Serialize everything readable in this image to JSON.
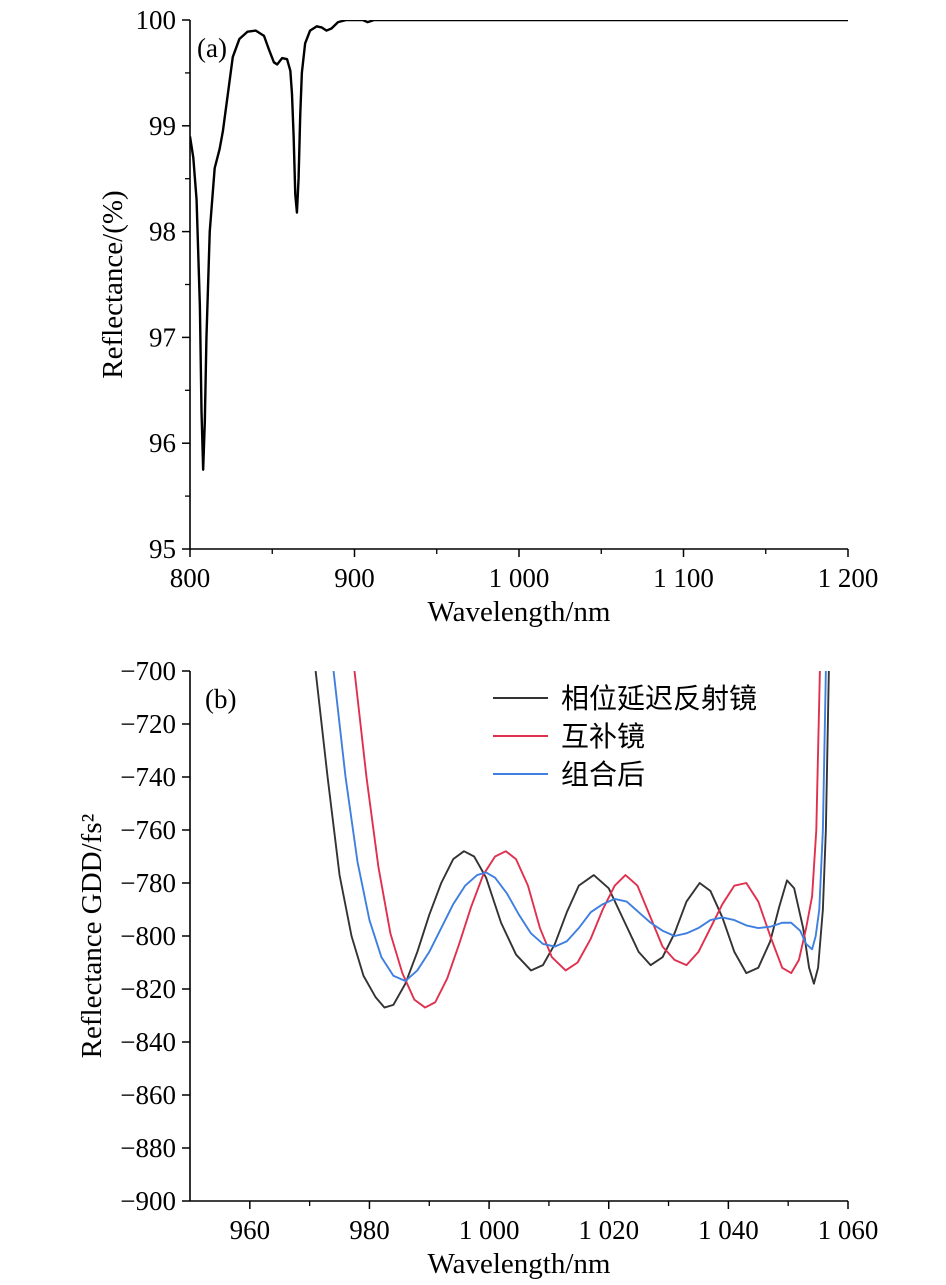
{
  "chart_data": [
    {
      "type": "line",
      "panel_label": "(a)",
      "xlabel": "Wavelength/nm",
      "ylabel": "Reflectance/(%)",
      "xlim": [
        800,
        1200
      ],
      "ylim": [
        95,
        100
      ],
      "xticks": [
        800,
        900,
        1000,
        1100,
        1200
      ],
      "xtick_labels": [
        "800",
        "900",
        "1 000",
        "1 100",
        "1 200"
      ],
      "yticks": [
        95,
        96,
        97,
        98,
        99,
        100
      ],
      "ytick_labels": [
        "95",
        "96",
        "97",
        "98",
        "99",
        "100"
      ],
      "grid": false,
      "series": [
        {
          "color": "#000000",
          "points": [
            [
              800,
              98.9
            ],
            [
              802,
              98.7
            ],
            [
              804,
              98.3
            ],
            [
              806,
              97.3
            ],
            [
              807,
              96.3
            ],
            [
              808,
              95.75
            ],
            [
              809,
              96.2
            ],
            [
              810,
              97.0
            ],
            [
              812,
              98.0
            ],
            [
              815,
              98.6
            ],
            [
              818,
              98.78
            ],
            [
              820,
              98.95
            ],
            [
              823,
              99.3
            ],
            [
              826,
              99.65
            ],
            [
              830,
              99.82
            ],
            [
              835,
              99.89
            ],
            [
              840,
              99.9
            ],
            [
              845,
              99.85
            ],
            [
              848,
              99.72
            ],
            [
              851,
              99.6
            ],
            [
              853,
              99.58
            ],
            [
              856,
              99.64
            ],
            [
              859,
              99.63
            ],
            [
              861,
              99.52
            ],
            [
              862,
              99.3
            ],
            [
              863,
              98.9
            ],
            [
              864,
              98.35
            ],
            [
              865,
              98.18
            ],
            [
              866,
              98.5
            ],
            [
              867,
              99.1
            ],
            [
              868,
              99.5
            ],
            [
              870,
              99.78
            ],
            [
              873,
              99.9
            ],
            [
              877,
              99.94
            ],
            [
              880,
              99.93
            ],
            [
              883,
              99.9
            ],
            [
              886,
              99.92
            ],
            [
              890,
              99.98
            ],
            [
              895,
              100.0
            ],
            [
              905,
              100.0
            ],
            [
              908,
              99.98
            ],
            [
              912,
              100.0
            ],
            [
              950,
              100.0
            ],
            [
              1000,
              100.0
            ],
            [
              1100,
              100.0
            ],
            [
              1200,
              100.0
            ]
          ]
        }
      ]
    },
    {
      "type": "line",
      "panel_label": "(b)",
      "xlabel": "Wavelength/nm",
      "ylabel": "Reflectance GDD/fs²",
      "xlim": [
        950,
        1060
      ],
      "ylim": [
        -900,
        -700
      ],
      "xticks": [
        960,
        980,
        1000,
        1020,
        1040,
        1060
      ],
      "xtick_labels": [
        "960",
        "980",
        "1 000",
        "1 020",
        "1 040",
        "1 060"
      ],
      "yticks": [
        -900,
        -880,
        -860,
        -840,
        -820,
        -800,
        -780,
        -760,
        -740,
        -720,
        -700
      ],
      "ytick_labels": [
        "−900",
        "−880",
        "−860",
        "−840",
        "−820",
        "−800",
        "−780",
        "−760",
        "−740",
        "−720",
        "−700"
      ],
      "grid": false,
      "legend_position": "top-right",
      "series": [
        {
          "name": "相位延迟反射镜",
          "color": "#333333",
          "points": [
            [
              971,
              -700
            ],
            [
              973,
              -740
            ],
            [
              975,
              -777
            ],
            [
              977,
              -800
            ],
            [
              979,
              -815
            ],
            [
              981,
              -823
            ],
            [
              982.5,
              -827
            ],
            [
              984,
              -826
            ],
            [
              986,
              -818
            ],
            [
              988,
              -806
            ],
            [
              990,
              -792
            ],
            [
              992,
              -780
            ],
            [
              994,
              -771
            ],
            [
              995.8,
              -768
            ],
            [
              997.5,
              -770
            ],
            [
              999.5,
              -778
            ],
            [
              1002,
              -795
            ],
            [
              1004.5,
              -807
            ],
            [
              1007,
              -813
            ],
            [
              1009,
              -811
            ],
            [
              1011,
              -803
            ],
            [
              1013,
              -791
            ],
            [
              1015,
              -781
            ],
            [
              1017.5,
              -777
            ],
            [
              1020,
              -782
            ],
            [
              1022.5,
              -794
            ],
            [
              1025,
              -806
            ],
            [
              1027,
              -811
            ],
            [
              1029,
              -808
            ],
            [
              1031,
              -799
            ],
            [
              1033,
              -787
            ],
            [
              1035.2,
              -780
            ],
            [
              1037,
              -783
            ],
            [
              1039,
              -793
            ],
            [
              1041,
              -806
            ],
            [
              1043,
              -814
            ],
            [
              1045,
              -812
            ],
            [
              1047,
              -802
            ],
            [
              1048.5,
              -789
            ],
            [
              1049.8,
              -779
            ],
            [
              1051,
              -782
            ],
            [
              1052.5,
              -797
            ],
            [
              1053.5,
              -812
            ],
            [
              1054.3,
              -818
            ],
            [
              1055,
              -812
            ],
            [
              1055.8,
              -790
            ],
            [
              1056.3,
              -760
            ],
            [
              1056.8,
              -700
            ]
          ]
        },
        {
          "name": "互补镜",
          "color": "#e0304e",
          "points": [
            [
              977.5,
              -700
            ],
            [
              979.5,
              -740
            ],
            [
              981.5,
              -774
            ],
            [
              983.5,
              -799
            ],
            [
              985.5,
              -814
            ],
            [
              987.5,
              -824
            ],
            [
              989.3,
              -827
            ],
            [
              991,
              -825
            ],
            [
              993,
              -816
            ],
            [
              995,
              -803
            ],
            [
              997,
              -789
            ],
            [
              999,
              -777
            ],
            [
              1001,
              -770
            ],
            [
              1002.8,
              -768
            ],
            [
              1004.5,
              -771
            ],
            [
              1006.5,
              -781
            ],
            [
              1008.5,
              -797
            ],
            [
              1010.5,
              -808
            ],
            [
              1012.8,
              -813
            ],
            [
              1014.8,
              -810
            ],
            [
              1017,
              -801
            ],
            [
              1019,
              -790
            ],
            [
              1021,
              -781
            ],
            [
              1022.8,
              -777
            ],
            [
              1024.8,
              -781
            ],
            [
              1027,
              -793
            ],
            [
              1029,
              -804
            ],
            [
              1031,
              -809
            ],
            [
              1033,
              -811
            ],
            [
              1035,
              -806
            ],
            [
              1037,
              -797
            ],
            [
              1039,
              -788
            ],
            [
              1041,
              -781
            ],
            [
              1043,
              -780
            ],
            [
              1045,
              -787
            ],
            [
              1047,
              -800
            ],
            [
              1049,
              -812
            ],
            [
              1050.5,
              -814
            ],
            [
              1051.8,
              -809
            ],
            [
              1053,
              -797
            ],
            [
              1054,
              -785
            ],
            [
              1054.7,
              -760
            ],
            [
              1055.3,
              -700
            ]
          ]
        },
        {
          "name": "组合后",
          "color": "#3f7fe0",
          "points": [
            [
              974,
              -700
            ],
            [
              976,
              -740
            ],
            [
              978,
              -772
            ],
            [
              980,
              -794
            ],
            [
              982,
              -808
            ],
            [
              984,
              -815
            ],
            [
              986,
              -817
            ],
            [
              988,
              -813
            ],
            [
              990,
              -806
            ],
            [
              992,
              -797
            ],
            [
              994,
              -788
            ],
            [
              996,
              -781
            ],
            [
              998,
              -777
            ],
            [
              999.5,
              -776
            ],
            [
              1001,
              -778
            ],
            [
              1003,
              -784
            ],
            [
              1005,
              -792
            ],
            [
              1007,
              -799
            ],
            [
              1009,
              -803
            ],
            [
              1011,
              -804
            ],
            [
              1013,
              -802
            ],
            [
              1015,
              -797
            ],
            [
              1017,
              -791
            ],
            [
              1019,
              -788
            ],
            [
              1021,
              -786
            ],
            [
              1023,
              -787
            ],
            [
              1025,
              -791
            ],
            [
              1027,
              -795
            ],
            [
              1029,
              -798
            ],
            [
              1031,
              -800
            ],
            [
              1033,
              -799
            ],
            [
              1035,
              -797
            ],
            [
              1037,
              -794
            ],
            [
              1039,
              -793
            ],
            [
              1041,
              -794
            ],
            [
              1043,
              -796
            ],
            [
              1045,
              -797
            ],
            [
              1047,
              -796.5
            ],
            [
              1049,
              -795
            ],
            [
              1050.5,
              -795
            ],
            [
              1052,
              -798
            ],
            [
              1053,
              -803
            ],
            [
              1054,
              -805
            ],
            [
              1054.6,
              -800
            ],
            [
              1055.2,
              -790
            ],
            [
              1055.8,
              -760
            ],
            [
              1056.3,
              -700
            ]
          ]
        }
      ]
    }
  ]
}
